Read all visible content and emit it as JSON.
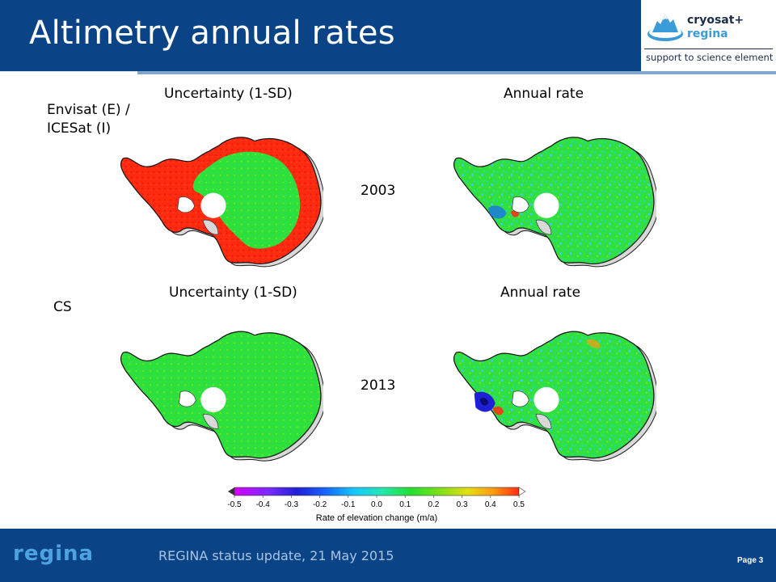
{
  "slide": {
    "title": "Altimetry annual rates"
  },
  "logo": {
    "name_line1": "cryosat+",
    "name_line2": "regina",
    "subtitle": "support to science element"
  },
  "row_labels": {
    "top": "Envisat (E) /\nICESat (I)",
    "top_line1": "Envisat (E) /",
    "top_line2": "ICESat (I)",
    "bottom": "CS"
  },
  "panels": {
    "uncertainty_label": "Uncertainty (1-SD)",
    "rate_label": "Annual rate",
    "year_top": "2003",
    "year_bottom": "2013"
  },
  "colorbar": {
    "ticks": [
      "-0.5",
      "-0.4",
      "-0.3",
      "-0.2",
      "-0.1",
      "0.0",
      "0.1",
      "0.2",
      "0.3",
      "0.4",
      "0.5"
    ],
    "label": "Rate of elevation change (m/a)",
    "colors": [
      "#d400ff",
      "#7a2bff",
      "#1f1fd8",
      "#1664ff",
      "#14c8ff",
      "#22e8b0",
      "#22e030",
      "#7ee01a",
      "#e2e010",
      "#ff9a10",
      "#ff2a10"
    ]
  },
  "footer": {
    "logo_text": "regina",
    "text": "REGINA status update,  21 May 2015",
    "page": "Page 3"
  },
  "colors": {
    "header_blue": "#0a4487",
    "uncertainty_high": "#ff2a10",
    "ice_green": "#22e030"
  }
}
